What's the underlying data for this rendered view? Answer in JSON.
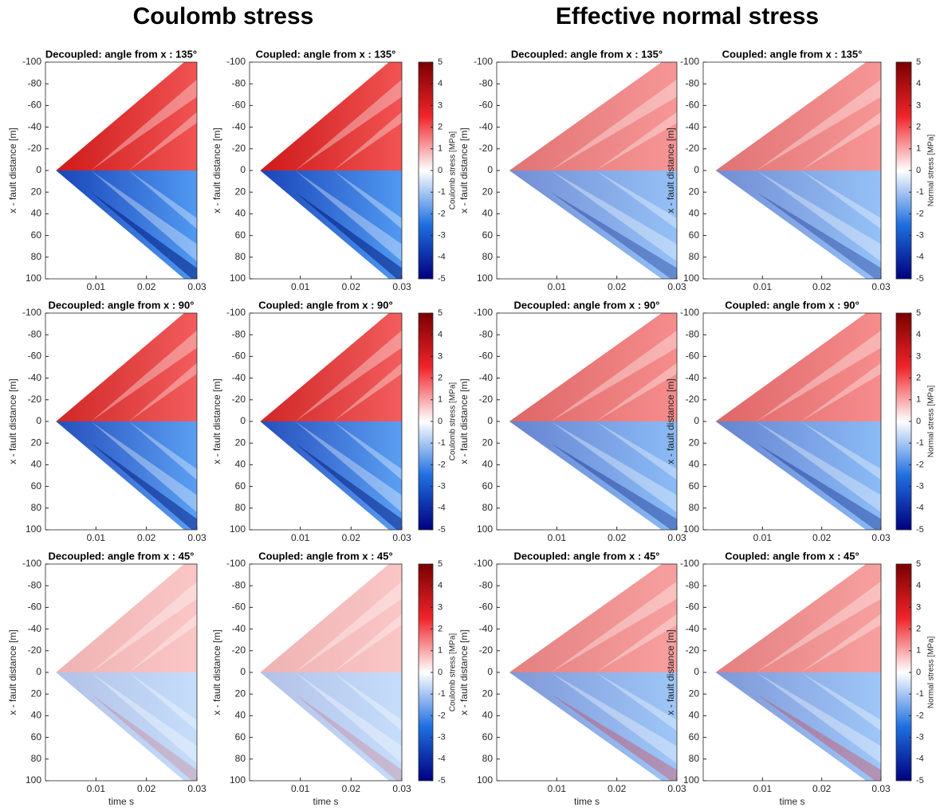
{
  "headings": [
    "Coulomb stress",
    "Effective normal stress"
  ],
  "chart_data": [
    {
      "type": "heatmap",
      "title": "Decoupled: angle from x : 135°",
      "ylabel": "x - fault distance [m]",
      "xlim": [
        0,
        0.03
      ],
      "ylim": [
        -100,
        100
      ],
      "xticks": [
        0.01,
        0.02,
        0.03
      ],
      "yticks": [
        -100,
        -80,
        -60,
        -40,
        -20,
        0,
        20,
        40,
        60,
        80,
        100
      ]
    },
    {
      "type": "heatmap",
      "title": "Coupled: angle from x : 135°",
      "ylabel": "x - fault distance [m]",
      "xlim": [
        0,
        0.03
      ],
      "ylim": [
        -100,
        100
      ],
      "xticks": [
        0.01,
        0.02,
        0.03
      ],
      "yticks": [
        -100,
        -80,
        -60,
        -40,
        -20,
        0,
        20,
        40,
        60,
        80,
        100
      ],
      "colorbar": {
        "label": "Coulomb stress [MPa]",
        "clim": [
          -5,
          5
        ],
        "ticks": [
          -5,
          -4,
          -3,
          -2,
          -1,
          0,
          1,
          2,
          3,
          4,
          5
        ]
      }
    },
    {
      "type": "heatmap",
      "title": "Decoupled: angle from x : 135°",
      "ylabel": "x - fault distance [m]",
      "xlim": [
        0,
        0.03
      ],
      "ylim": [
        -100,
        100
      ],
      "xticks": [
        0.01,
        0.02,
        0.03
      ],
      "yticks": [
        -100,
        -80,
        -60,
        -40,
        -20,
        0,
        20,
        40,
        60,
        80,
        100
      ]
    },
    {
      "type": "heatmap",
      "title": "Coupled: angle from x : 135°",
      "ylabel": "x - fault distance [m]",
      "xlim": [
        0,
        0.03
      ],
      "ylim": [
        -100,
        100
      ],
      "xticks": [
        0.01,
        0.02,
        0.03
      ],
      "yticks": [
        -100,
        -80,
        -60,
        -40,
        -20,
        0,
        20,
        40,
        60,
        80,
        100
      ],
      "colorbar": {
        "label": "Normal stress [MPa]",
        "clim": [
          -5,
          5
        ],
        "ticks": [
          -5,
          -4,
          -3,
          -2,
          -1,
          0,
          1,
          2,
          3,
          4,
          5
        ]
      }
    },
    {
      "type": "heatmap",
      "title": "Decoupled: angle from x : 90°",
      "ylabel": "x - fault distance [m]",
      "xlim": [
        0,
        0.03
      ],
      "ylim": [
        -100,
        100
      ],
      "xticks": [
        0.01,
        0.02,
        0.03
      ],
      "yticks": [
        -100,
        -80,
        -60,
        -40,
        -20,
        0,
        20,
        40,
        60,
        80,
        100
      ]
    },
    {
      "type": "heatmap",
      "title": "Coupled: angle from x : 90°",
      "ylabel": "x - fault distance [m]",
      "xlim": [
        0,
        0.03
      ],
      "ylim": [
        -100,
        100
      ],
      "xticks": [
        0.01,
        0.02,
        0.03
      ],
      "yticks": [
        -100,
        -80,
        -60,
        -40,
        -20,
        0,
        20,
        40,
        60,
        80,
        100
      ],
      "colorbar": {
        "label": "Coulomb stress [MPa]",
        "clim": [
          -5,
          5
        ],
        "ticks": [
          -5,
          -4,
          -3,
          -2,
          -1,
          0,
          1,
          2,
          3,
          4,
          5
        ]
      }
    },
    {
      "type": "heatmap",
      "title": "Decoupled: angle from x : 90°",
      "ylabel": "x - fault distance [m]",
      "xlim": [
        0,
        0.03
      ],
      "ylim": [
        -100,
        100
      ],
      "xticks": [
        0.01,
        0.02,
        0.03
      ],
      "yticks": [
        -100,
        -80,
        -60,
        -40,
        -20,
        0,
        20,
        40,
        60,
        80,
        100
      ]
    },
    {
      "type": "heatmap",
      "title": "Coupled: angle from x : 90°",
      "ylabel": "x - fault distance [m]",
      "xlim": [
        0,
        0.03
      ],
      "ylim": [
        -100,
        100
      ],
      "xticks": [
        0.01,
        0.02,
        0.03
      ],
      "yticks": [
        -100,
        -80,
        -60,
        -40,
        -20,
        0,
        20,
        40,
        60,
        80,
        100
      ],
      "colorbar": {
        "label": "Normal stress [MPa]",
        "clim": [
          -5,
          5
        ],
        "ticks": [
          -5,
          -4,
          -3,
          -2,
          -1,
          0,
          1,
          2,
          3,
          4,
          5
        ]
      }
    },
    {
      "type": "heatmap",
      "title": "Decoupled: angle from x : 45°",
      "ylabel": "x - fault distance [m]",
      "xlabel": "time s",
      "xlim": [
        0,
        0.03
      ],
      "ylim": [
        -100,
        100
      ],
      "xticks": [
        0.01,
        0.02,
        0.03
      ],
      "yticks": [
        -100,
        -80,
        -60,
        -40,
        -20,
        0,
        20,
        40,
        60,
        80,
        100
      ]
    },
    {
      "type": "heatmap",
      "title": "Coupled: angle from x : 45°",
      "ylabel": "x - fault distance [m]",
      "xlabel": "time s",
      "xlim": [
        0,
        0.03
      ],
      "ylim": [
        -100,
        100
      ],
      "xticks": [
        0.01,
        0.02,
        0.03
      ],
      "yticks": [
        -100,
        -80,
        -60,
        -40,
        -20,
        0,
        20,
        40,
        60,
        80,
        100
      ],
      "colorbar": {
        "label": "Coulomb stress [MPa]",
        "clim": [
          -5,
          5
        ],
        "ticks": [
          -5,
          -4,
          -3,
          -2,
          -1,
          0,
          1,
          2,
          3,
          4,
          5
        ]
      }
    },
    {
      "type": "heatmap",
      "title": "Decoupled: angle from x : 45°",
      "ylabel": "x - fault distance [m]",
      "xlabel": "time s",
      "xlim": [
        0,
        0.03
      ],
      "ylim": [
        -100,
        100
      ],
      "xticks": [
        0.01,
        0.02,
        0.03
      ],
      "yticks": [
        -100,
        -80,
        -60,
        -40,
        -20,
        0,
        20,
        40,
        60,
        80,
        100
      ]
    },
    {
      "type": "heatmap",
      "title": "Coupled: angle from x : 45°",
      "ylabel": "x - fault distance [m]",
      "xlabel": "time s",
      "xlim": [
        0,
        0.03
      ],
      "ylim": [
        -100,
        100
      ],
      "xticks": [
        0.01,
        0.02,
        0.03
      ],
      "yticks": [
        -100,
        -80,
        -60,
        -40,
        -20,
        0,
        20,
        40,
        60,
        80,
        100
      ],
      "colorbar": {
        "label": "Normal stress [MPa]",
        "clim": [
          -5,
          5
        ],
        "ticks": [
          -5,
          -4,
          -3,
          -2,
          -1,
          0,
          1,
          2,
          3,
          4,
          5
        ]
      }
    }
  ]
}
